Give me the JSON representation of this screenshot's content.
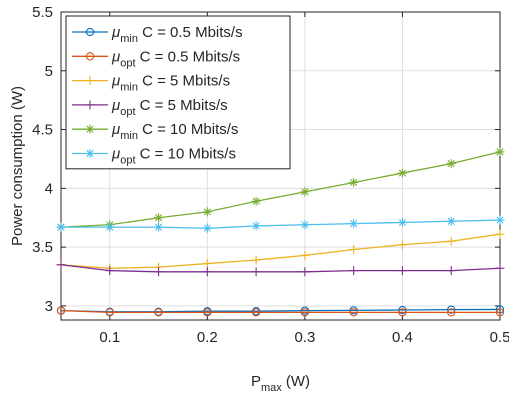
{
  "chart_data": {
    "type": "line",
    "xlabel": "P",
    "xlabel_sub": "max",
    "xlabel_unit": " (W)",
    "ylabel": "Power consumption (W)",
    "xlim": [
      0.05,
      0.5
    ],
    "ylim": [
      2.88,
      5.5
    ],
    "xticks": [
      0.1,
      0.2,
      0.3,
      0.4,
      0.5
    ],
    "xtick_labels": [
      "0.1",
      "0.2",
      "0.3",
      "0.4",
      "0.5"
    ],
    "yticks": [
      3,
      3.5,
      4,
      4.5,
      5,
      5.5
    ],
    "ytick_labels": [
      "3",
      "3.5",
      "4",
      "4.5",
      "5",
      "5.5"
    ],
    "grid": true,
    "legend_position": "top-left",
    "x": [
      0.05,
      0.1,
      0.15,
      0.2,
      0.25,
      0.3,
      0.35,
      0.4,
      0.45,
      0.5
    ],
    "series": [
      {
        "name": "μ_min C = 0.5 Mbits/s",
        "mu": "μ",
        "sub": "min",
        "rest": " C = 0.5 Mbits/s",
        "color": "#0072BD",
        "marker": "circle",
        "values": [
          2.96,
          2.95,
          2.95,
          2.955,
          2.955,
          2.96,
          2.962,
          2.965,
          2.968,
          2.97
        ]
      },
      {
        "name": "μ_opt C = 0.5 Mbits/s",
        "mu": "μ",
        "sub": "opt",
        "rest": " C = 0.5 Mbits/s",
        "color": "#D95319",
        "marker": "circle",
        "values": [
          2.96,
          2.945,
          2.945,
          2.945,
          2.945,
          2.945,
          2.945,
          2.945,
          2.945,
          2.945
        ]
      },
      {
        "name": "μ_min C = 5 Mbits/s",
        "mu": "μ",
        "sub": "min",
        "rest": " C = 5 Mbits/s",
        "color": "#EDB120",
        "marker": "plus",
        "values": [
          3.35,
          3.32,
          3.33,
          3.36,
          3.39,
          3.43,
          3.48,
          3.52,
          3.55,
          3.61
        ]
      },
      {
        "name": "μ_opt C = 5 Mbits/s",
        "mu": "μ",
        "sub": "opt",
        "rest": " C = 5 Mbits/s",
        "color": "#7E2F8E",
        "marker": "plus",
        "values": [
          3.35,
          3.3,
          3.29,
          3.29,
          3.29,
          3.29,
          3.3,
          3.3,
          3.3,
          3.32
        ]
      },
      {
        "name": "μ_min C = 10 Mbits/s",
        "mu": "μ",
        "sub": "min",
        "rest": " C = 10 Mbits/s",
        "color": "#77AC30",
        "marker": "asterisk",
        "values": [
          3.67,
          3.69,
          3.75,
          3.8,
          3.89,
          3.97,
          4.05,
          4.13,
          4.21,
          4.31
        ]
      },
      {
        "name": "μ_opt C = 10 Mbits/s",
        "mu": "μ",
        "sub": "opt",
        "rest": " C = 10 Mbits/s",
        "color": "#4DBEEE",
        "marker": "asterisk",
        "values": [
          3.67,
          3.67,
          3.67,
          3.66,
          3.68,
          3.69,
          3.7,
          3.71,
          3.72,
          3.73
        ]
      }
    ]
  }
}
